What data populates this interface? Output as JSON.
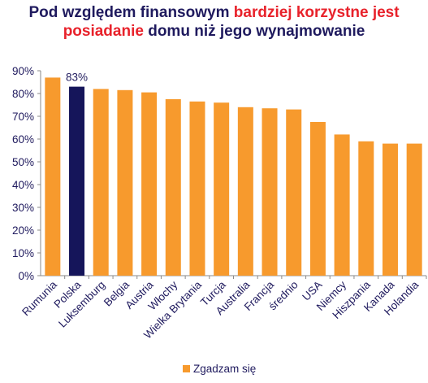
{
  "title": {
    "line1_part1": "Pod względem finansowym ",
    "line1_part2": "bardziej korzystne jest",
    "line2_part1": "posiadanie",
    "line2_part2": " domu niż jego wynajmowanie"
  },
  "colors": {
    "bar": "#f79a2d",
    "highlight_bar": "#15155a",
    "title_dark": "#1f1a5e",
    "title_red": "#e8222b"
  },
  "chart_data": {
    "type": "bar",
    "categories": [
      "Rumunia",
      "Polska",
      "Luksemburg",
      "Belgia",
      "Austria",
      "Włochy",
      "Wielka Brytania",
      "Turcja",
      "Australia",
      "Francja",
      "średnio",
      "USA",
      "Niemcy",
      "Hiszpania",
      "Kanada",
      "Holandia"
    ],
    "series": [
      {
        "name": "Zgadzam się",
        "values": [
          87,
          83,
          82,
          81.5,
          80.5,
          77.5,
          76.5,
          76,
          74,
          73.5,
          73,
          67.5,
          62,
          59,
          58,
          58
        ]
      }
    ],
    "highlight_index": 1,
    "data_labels": [
      {
        "index": 1,
        "text": "83%"
      }
    ],
    "ylim": [
      0,
      90
    ],
    "yticks": [
      "0%",
      "10%",
      "20%",
      "30%",
      "40%",
      "50%",
      "60%",
      "70%",
      "80%",
      "90%"
    ],
    "legend": {
      "position": "bottom",
      "label": "Zgadzam się"
    },
    "grid": false
  }
}
